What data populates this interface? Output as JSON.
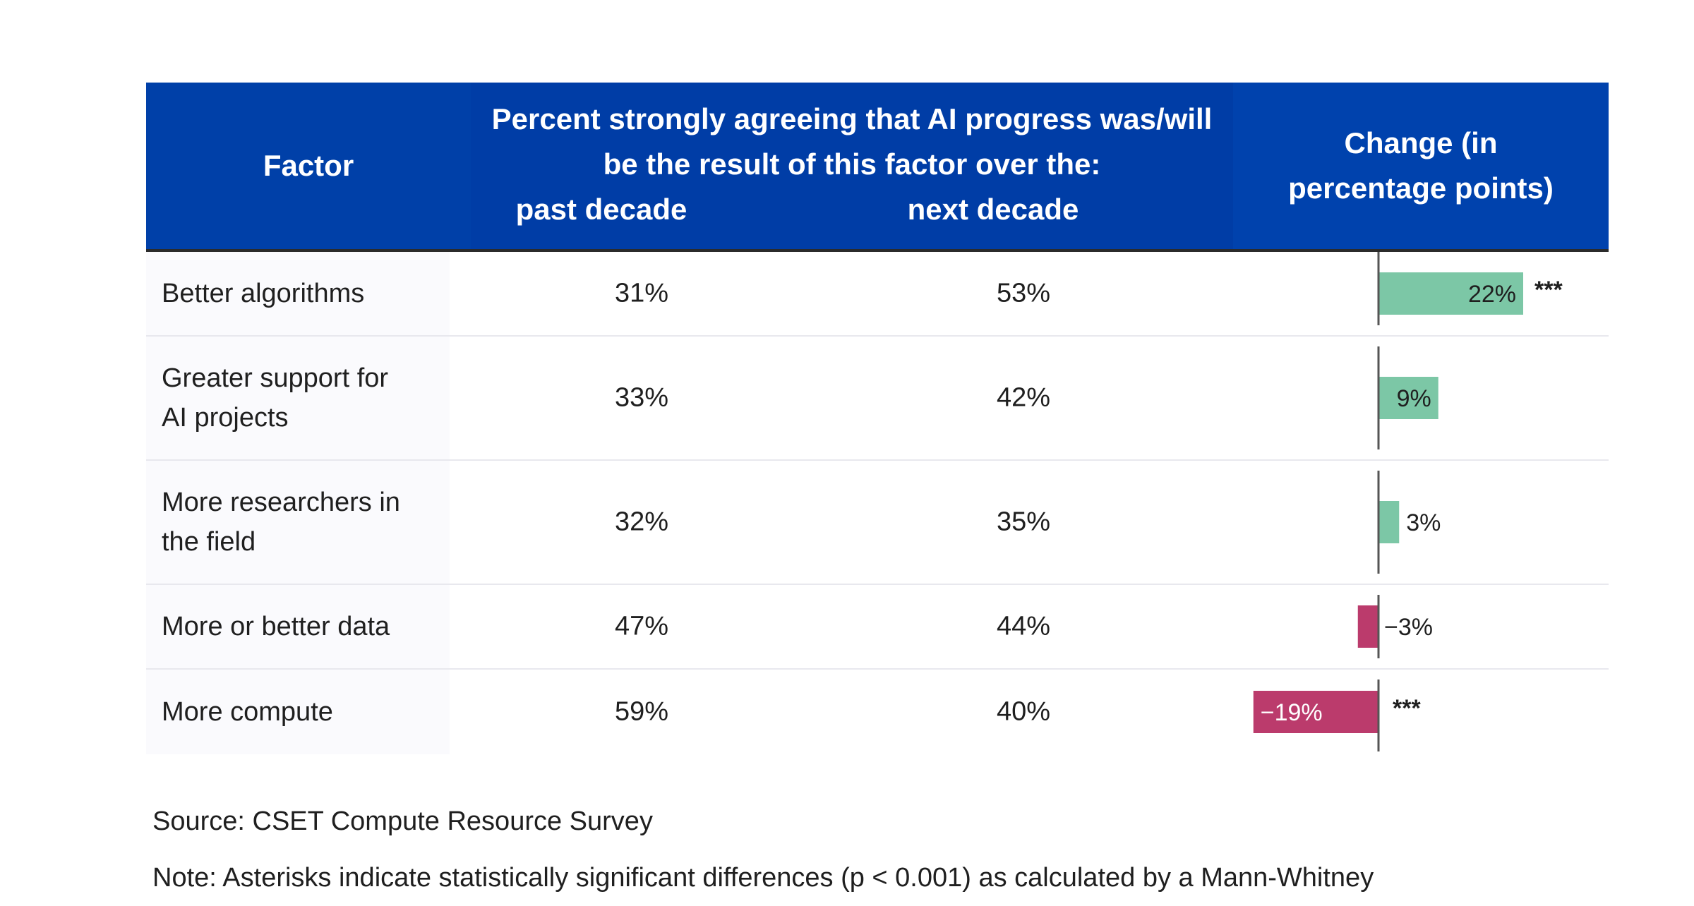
{
  "chart_data": {
    "type": "table",
    "columns": {
      "factor": "Factor",
      "percent": "Percent strongly agreeing that AI progress was/will be the result of this factor over the:",
      "past": "past decade",
      "next": "next decade",
      "change": "Change (in percentage points)"
    },
    "rows": [
      {
        "factor": "Better algorithms",
        "past": "31%",
        "next": "53%",
        "change": 22,
        "change_label": "22%",
        "sig": "***"
      },
      {
        "factor": "Greater support for\nAI projects",
        "past": "33%",
        "next": "42%",
        "change": 9,
        "change_label": "9%",
        "sig": ""
      },
      {
        "factor": "More researchers in\nthe field",
        "past": "32%",
        "next": "35%",
        "change": 3,
        "change_label": "3%",
        "sig": ""
      },
      {
        "factor": "More or better data",
        "past": "47%",
        "next": "44%",
        "change": -3,
        "change_label": "−3%",
        "sig": ""
      },
      {
        "factor": "More compute",
        "past": "59%",
        "next": "40%",
        "change": -19,
        "change_label": "−19%",
        "sig": "***"
      }
    ],
    "colors": {
      "header": "#003da6",
      "positive": "#7cc7a6",
      "negative": "#bb3b6c"
    }
  },
  "footer": {
    "source": "Source: CSET Compute Resource Survey",
    "note": "Note: Asterisks indicate statistically significant differences (p < 0.001) as calculated by a Mann-Whitney"
  }
}
